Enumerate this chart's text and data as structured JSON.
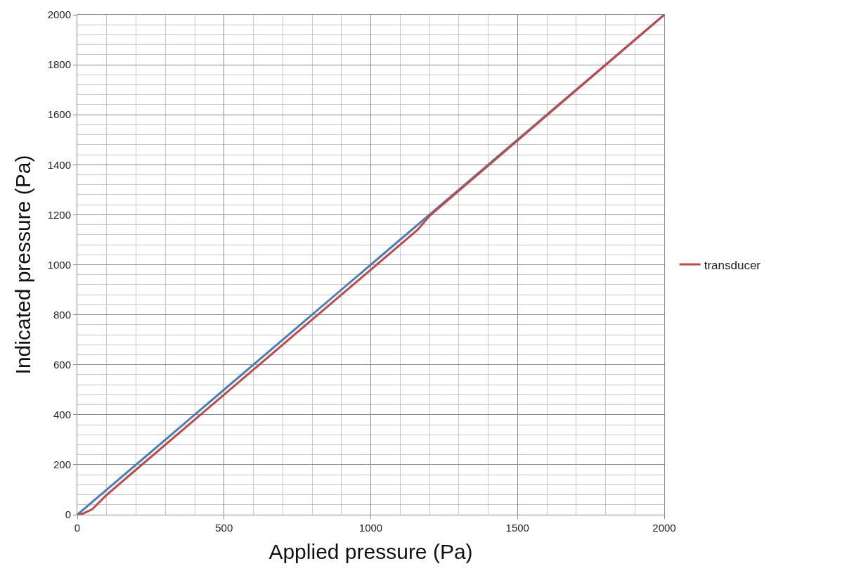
{
  "chart_data": {
    "type": "line",
    "xlabel": "Applied pressure (Pa)",
    "ylabel": "Indicated pressure (Pa)",
    "xlim": [
      0,
      2000
    ],
    "xticks": [
      0,
      500,
      1000,
      1500,
      2000
    ],
    "ylim": [
      0,
      2000
    ],
    "yticks": [
      0,
      200,
      400,
      600,
      800,
      1000,
      1200,
      1400,
      1600,
      1800,
      2000
    ],
    "grid": true,
    "legend": "right",
    "marker": "none",
    "line_style": "solid",
    "series": [
      {
        "color": "#4a7ebb",
        "x": [
          0,
          500,
          1000,
          1500,
          2000
        ],
        "values": [
          0,
          500,
          1000,
          1500,
          2000
        ]
      },
      {
        "name": "transducer",
        "color": "#be4b48",
        "x": [
          0,
          20,
          50,
          100,
          200,
          400,
          800,
          1160,
          1200,
          1500,
          2000
        ],
        "values": [
          0,
          5,
          21,
          79,
          180,
          380,
          780,
          1140,
          1195,
          1497,
          2000
        ]
      }
    ]
  }
}
